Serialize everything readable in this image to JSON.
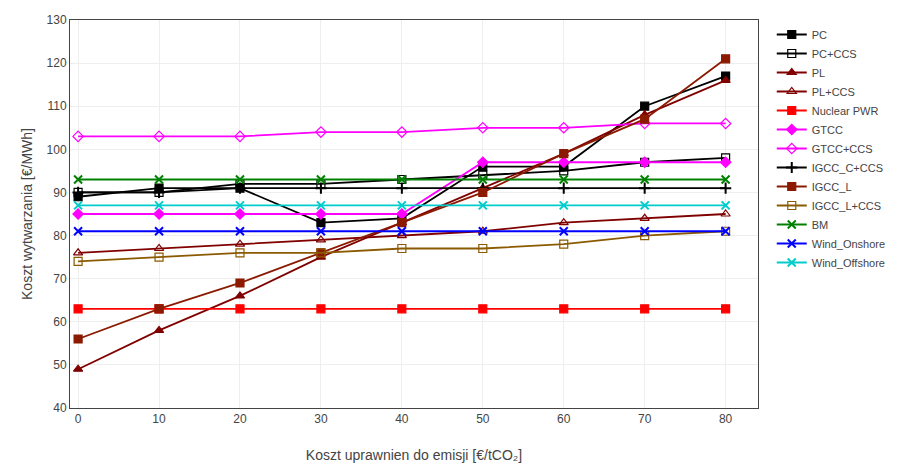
{
  "chart_data": {
    "type": "line",
    "xlabel": "Koszt uprawnien do emisji [€/tCO₂]",
    "ylabel": "Koszt wytwarzania [€/MWh]",
    "x": [
      0,
      10,
      20,
      30,
      40,
      50,
      60,
      70,
      80
    ],
    "xlim": [
      -1,
      84
    ],
    "xticks": [
      0,
      10,
      20,
      30,
      40,
      50,
      60,
      70,
      80
    ],
    "ylim": [
      40,
      130
    ],
    "yticks": [
      40,
      50,
      60,
      70,
      80,
      90,
      100,
      110,
      120,
      130
    ],
    "grid": true,
    "legend": "right",
    "series": [
      {
        "name": "PC",
        "color": "#000000",
        "marker": "square",
        "line_style": "solid",
        "values": [
          89,
          91,
          91,
          83,
          84,
          96,
          96,
          110,
          117
        ]
      },
      {
        "name": "PC+CCS",
        "color": "#000000",
        "marker": "square-open",
        "line_style": "solid",
        "values": [
          90,
          90,
          92,
          92,
          93,
          94,
          95,
          97,
          98
        ]
      },
      {
        "name": "PL",
        "color": "#800000",
        "marker": "triangle-up",
        "line_style": "solid",
        "values": [
          49,
          58,
          66,
          75,
          83,
          91,
          99,
          108,
          116
        ]
      },
      {
        "name": "PL+CCS",
        "color": "#800000",
        "marker": "triangle-up-open",
        "line_style": "solid",
        "values": [
          76,
          77,
          78,
          79,
          80,
          81,
          83,
          84,
          85
        ]
      },
      {
        "name": "Nuclear PWR",
        "color": "#ff0000",
        "marker": "square",
        "line_style": "solid",
        "values": [
          63,
          63,
          63,
          63,
          63,
          63,
          63,
          63,
          63
        ]
      },
      {
        "name": "GTCC",
        "color": "#ff00ff",
        "marker": "diamond",
        "line_style": "solid",
        "values": [
          85,
          85,
          85,
          85,
          85,
          97,
          97,
          97,
          97
        ]
      },
      {
        "name": "GTCC+CCS",
        "color": "#ff00ff",
        "marker": "diamond-open",
        "line_style": "solid",
        "values": [
          103,
          103,
          103,
          104,
          104,
          105,
          105,
          106,
          106
        ]
      },
      {
        "name": "IGCC_C+CCS",
        "color": "#000000",
        "marker": "cross-thin",
        "line_style": "solid",
        "values": [
          90,
          90,
          91,
          91,
          91,
          91,
          91,
          91,
          91
        ]
      },
      {
        "name": "IGCC_L",
        "color": "#8b1a00",
        "marker": "square",
        "line_style": "solid",
        "values": [
          56,
          63,
          69,
          76,
          83,
          90,
          99,
          107,
          121
        ]
      },
      {
        "name": "IGCC_L+CCS",
        "color": "#8b5a00",
        "marker": "square-open",
        "line_style": "solid",
        "values": [
          74,
          75,
          76,
          76,
          77,
          77,
          78,
          80,
          81
        ]
      },
      {
        "name": "BM",
        "color": "#008000",
        "marker": "x-thin",
        "line_style": "solid",
        "values": [
          93,
          93,
          93,
          93,
          93,
          93,
          93,
          93,
          93
        ]
      },
      {
        "name": "Wind_Onshore",
        "color": "#0000ff",
        "marker": "x-thin",
        "line_style": "solid",
        "values": [
          81,
          81,
          81,
          81,
          81,
          81,
          81,
          81,
          81
        ]
      },
      {
        "name": "Wind_Offshore",
        "color": "#00cccc",
        "marker": "x-thin",
        "line_style": "solid",
        "values": [
          87,
          87,
          87,
          87,
          87,
          87,
          87,
          87,
          87
        ]
      }
    ]
  }
}
